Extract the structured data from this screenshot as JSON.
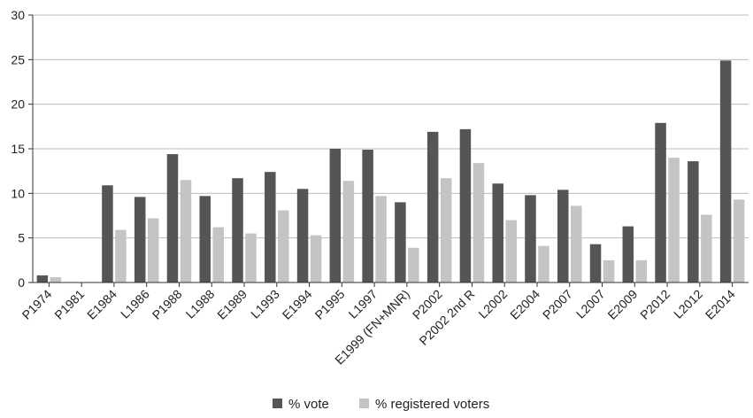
{
  "chart_data": {
    "type": "bar",
    "categories": [
      "P1974",
      "P1981",
      "E1984",
      "L1986",
      "P1988",
      "L1988",
      "E1989",
      "L1993",
      "E1994",
      "P1995",
      "L1997",
      "E1999 (FN+MNR)",
      "P2002",
      "P2002 2nd R",
      "L2002",
      "E2004",
      "P2007",
      "L2007",
      "E2009",
      "P2012",
      "L2012",
      "E2014"
    ],
    "series": [
      {
        "name": "% vote",
        "color": "#555555",
        "values": [
          0.8,
          0,
          10.9,
          9.6,
          14.4,
          9.7,
          11.7,
          12.4,
          10.5,
          15.0,
          14.9,
          9.0,
          16.9,
          17.2,
          11.1,
          9.8,
          10.4,
          4.3,
          6.3,
          17.9,
          13.6,
          24.9
        ]
      },
      {
        "name": "% registered voters",
        "color": "#c4c4c4",
        "values": [
          0.6,
          0,
          5.9,
          7.2,
          11.5,
          6.2,
          5.5,
          8.1,
          5.3,
          11.4,
          9.7,
          3.9,
          11.7,
          13.4,
          7.0,
          4.1,
          8.6,
          2.5,
          2.5,
          14.0,
          7.6,
          9.3
        ]
      }
    ],
    "yticks": [
      0,
      5,
      10,
      15,
      20,
      25,
      30
    ],
    "ylim": [
      0,
      30
    ],
    "title": "",
    "xlabel": "",
    "ylabel": "",
    "grid": true,
    "legend_position": "bottom"
  }
}
